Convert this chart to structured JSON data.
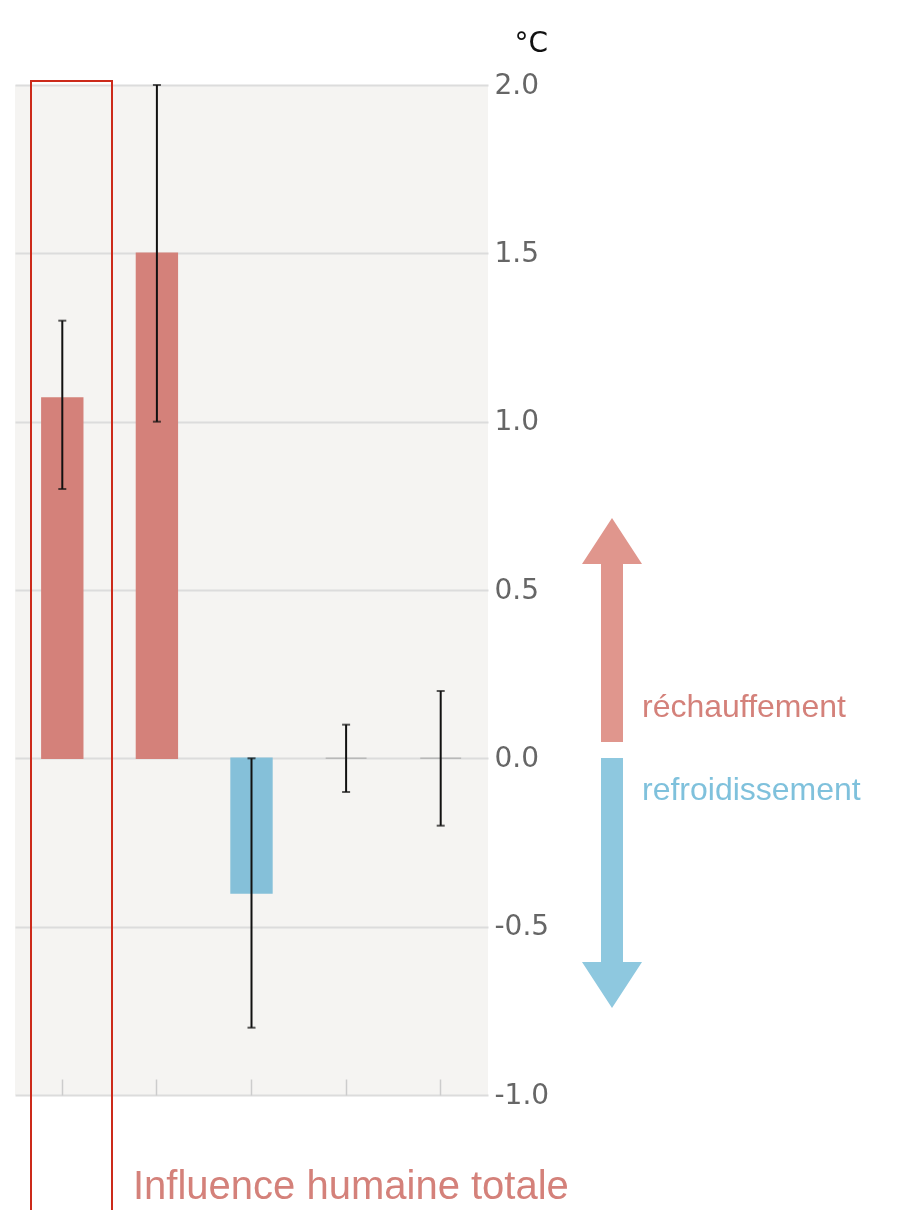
{
  "chart_data": {
    "type": "bar",
    "ylabel": "°C",
    "categories": [
      null,
      null,
      null,
      null,
      null
    ],
    "values": [
      1.07,
      1.5,
      -0.4,
      0,
      0
    ],
    "colors": [
      "#d4817a",
      "#d4817a",
      "#85c0d9",
      "#b8b8b8",
      "#b8b8b8"
    ],
    "errors": [
      [
        0.8,
        1.3
      ],
      [
        1.0,
        2.0
      ],
      [
        -0.8,
        0.0
      ],
      [
        -0.1,
        0.1
      ],
      [
        -0.2,
        0.2
      ]
    ],
    "ylim": [
      -1,
      2
    ],
    "yticks": [
      {
        "value": -1,
        "label": "-1.0"
      },
      {
        "value": -0.5,
        "label": "-0.5"
      },
      {
        "value": 0,
        "label": "0.0"
      },
      {
        "value": 0.5,
        "label": "0.5"
      },
      {
        "value": 1,
        "label": "1.0"
      },
      {
        "value": 1.5,
        "label": "1.5"
      },
      {
        "value": 2,
        "label": "2.0"
      }
    ],
    "grid": "y",
    "annotations": [
      "Influence humaine totale",
      "réchauffement",
      "refroidissement"
    ]
  }
}
